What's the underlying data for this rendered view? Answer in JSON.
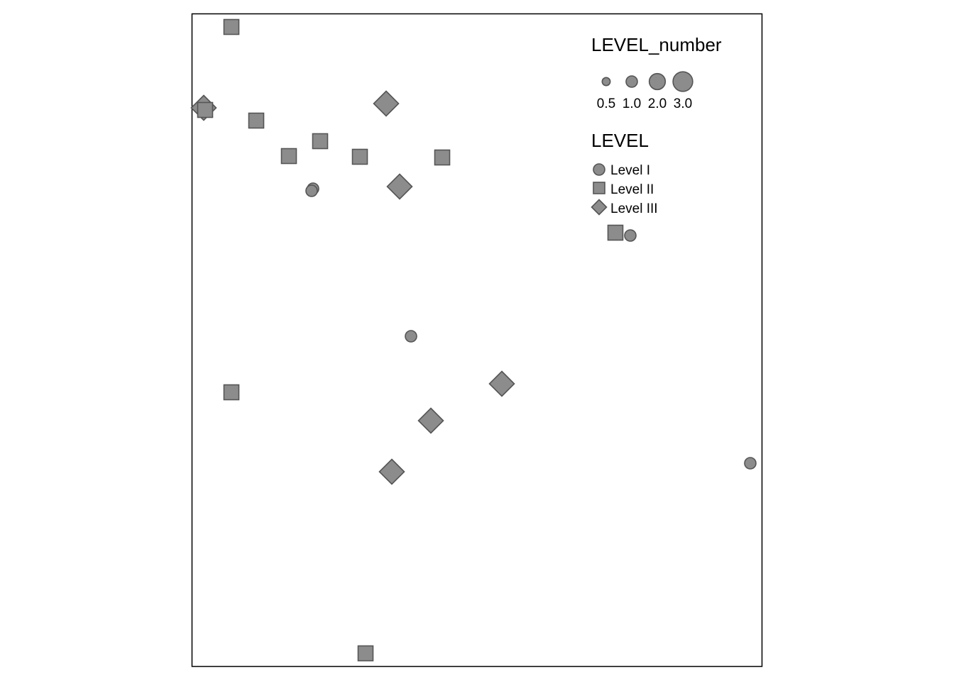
{
  "colors": {
    "symbol_fill": "#8c8c8c",
    "symbol_stroke": "#555555",
    "frame": "#000000",
    "background": "#ffffff"
  },
  "legend": {
    "size_title": "LEVEL_number",
    "size_items": [
      {
        "label": "0.5",
        "value": 0.5
      },
      {
        "label": "1.0",
        "value": 1.0
      },
      {
        "label": "2.0",
        "value": 2.0
      },
      {
        "label": "3.0",
        "value": 3.0
      }
    ],
    "shape_title": "LEVEL",
    "shape_items": [
      {
        "label": "Level I",
        "shape": "circle"
      },
      {
        "label": "Level II",
        "shape": "square"
      },
      {
        "label": "Level III",
        "shape": "diamond"
      }
    ]
  },
  "features": [
    {
      "level": "Level II",
      "value": 1.0
    },
    {
      "level": "Level III",
      "value": 1.0
    },
    {
      "level": "Level II",
      "value": 1.0
    },
    {
      "level": "Level II",
      "value": 1.0
    },
    {
      "level": "Level III",
      "value": 1.0
    },
    {
      "level": "Level II",
      "value": 1.0
    },
    {
      "level": "Level II",
      "value": 1.0
    },
    {
      "level": "Level II",
      "value": 1.0
    },
    {
      "level": "Level II",
      "value": 1.0
    },
    {
      "level": "Level I",
      "value": 1.0
    },
    {
      "level": "Level I",
      "value": 1.0
    },
    {
      "level": "Level III",
      "value": 1.0
    },
    {
      "level": "Level II",
      "value": 1.0
    },
    {
      "level": "Level I",
      "value": 1.0
    },
    {
      "level": "Level I",
      "value": 1.0
    },
    {
      "level": "Level II",
      "value": 1.0
    },
    {
      "level": "Level III",
      "value": 1.0
    },
    {
      "level": "Level III",
      "value": 1.0
    },
    {
      "level": "Level III",
      "value": 1.0
    },
    {
      "level": "Level I",
      "value": 1.0
    },
    {
      "level": "Level II",
      "value": 1.0
    }
  ]
}
